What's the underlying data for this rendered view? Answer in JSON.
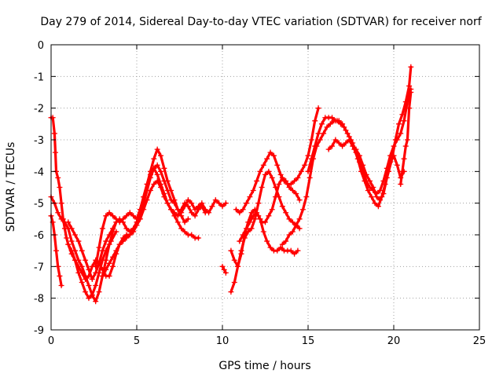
{
  "chart_data": {
    "type": "scatter",
    "title": "Day 279 of 2014, Sidereal Day-to-day VTEC variation (SDTVAR) for receiver norf",
    "xlabel": "GPS time / hours",
    "ylabel": "SDTVAR / TECUs",
    "xlim": [
      0,
      25
    ],
    "ylim": [
      -9,
      0
    ],
    "xticks": [
      0,
      5,
      10,
      15,
      20,
      25
    ],
    "xtick_labels": [
      "0",
      "5",
      "10",
      "15",
      "20",
      "25"
    ],
    "yticks": [
      0,
      -1,
      -2,
      -3,
      -4,
      -5,
      -6,
      -7,
      -8,
      -9
    ],
    "ytick_labels": [
      "0",
      "-1",
      "-2",
      "-3",
      "-4",
      "-5",
      "-6",
      "-7",
      "-8",
      "-9"
    ],
    "grid": true,
    "marker": "+",
    "series_color": "#ff0000",
    "series": [
      {
        "name": "trace-1",
        "x": [
          0.0,
          0.1,
          0.2,
          0.25,
          0.3,
          0.4,
          0.5,
          0.6,
          0.7,
          0.8,
          0.9,
          1.0,
          1.2,
          1.4,
          1.6,
          1.8,
          2.0,
          2.2,
          2.4,
          2.6,
          2.8,
          3.0,
          3.2,
          3.5,
          3.8
        ],
        "y": [
          -2.3,
          -2.3,
          -2.8,
          -3.4,
          -4.0,
          -4.2,
          -4.5,
          -5.0,
          -5.5,
          -5.8,
          -6.1,
          -6.3,
          -6.5,
          -6.8,
          -7.2,
          -7.5,
          -7.8,
          -8.0,
          -7.9,
          -7.6,
          -7.2,
          -6.8,
          -6.5,
          -6.2,
          -5.9
        ]
      },
      {
        "name": "trace-2",
        "x": [
          0.0,
          0.2,
          0.4,
          0.6,
          0.8,
          1.0,
          1.2,
          1.4,
          1.6,
          1.8,
          2.0,
          2.2,
          2.4,
          2.6,
          2.8,
          3.0,
          3.2,
          3.4,
          3.6,
          3.8
        ],
        "y": [
          -4.8,
          -5.0,
          -5.3,
          -5.5,
          -5.6,
          -5.8,
          -6.2,
          -6.5,
          -6.8,
          -7.0,
          -7.3,
          -7.6,
          -7.9,
          -8.1,
          -7.8,
          -7.3,
          -6.8,
          -6.3,
          -5.9,
          -5.6
        ]
      },
      {
        "name": "trace-3",
        "x": [
          0.0,
          0.1,
          0.2,
          0.3,
          0.4,
          0.5,
          0.6
        ],
        "y": [
          -5.4,
          -5.6,
          -6.0,
          -6.5,
          -7.0,
          -7.3,
          -7.6
        ]
      },
      {
        "name": "trace-4",
        "x": [
          1.0,
          1.2,
          1.4,
          1.6,
          1.8,
          2.0,
          2.2,
          2.4,
          2.6,
          2.8,
          3.0,
          3.2,
          3.4,
          3.6,
          3.8,
          4.0,
          4.2,
          4.4,
          4.6,
          4.8,
          5.0,
          5.2,
          5.4,
          5.6,
          5.8,
          6.0,
          6.2,
          6.4,
          6.6,
          6.8,
          7.0,
          7.2,
          7.4,
          7.6,
          7.8,
          8.0,
          8.2,
          8.4,
          8.6,
          8.8,
          9.0,
          9.2,
          9.4,
          9.6,
          9.8,
          10.0,
          10.2
        ],
        "y": [
          -5.6,
          -5.8,
          -6.0,
          -6.2,
          -6.5,
          -6.8,
          -7.1,
          -7.4,
          -7.2,
          -6.9,
          -6.5,
          -6.2,
          -6.0,
          -5.8,
          -5.6,
          -5.5,
          -5.6,
          -5.8,
          -5.9,
          -5.8,
          -5.6,
          -5.3,
          -5.0,
          -4.6,
          -4.2,
          -3.9,
          -3.8,
          -4.0,
          -4.3,
          -4.6,
          -4.9,
          -5.0,
          -5.2,
          -5.3,
          -5.1,
          -4.9,
          -5.0,
          -5.2,
          -5.1,
          -5.0,
          -5.2,
          -5.3,
          -5.1,
          -4.9,
          -5.0,
          -5.1,
          -5.0
        ]
      },
      {
        "name": "trace-5",
        "x": [
          1.0,
          1.2,
          1.4,
          1.6,
          1.8,
          2.0,
          2.2,
          2.4,
          2.6,
          2.8,
          3.0,
          3.2,
          3.4,
          3.6,
          3.8,
          4.0,
          4.2,
          4.4,
          4.6,
          4.8,
          5.0,
          5.2,
          5.4,
          5.6,
          5.8,
          6.0,
          6.2,
          6.4,
          6.6,
          6.8,
          7.0,
          7.2,
          7.4,
          7.6,
          7.8,
          8.0,
          8.2,
          8.4,
          8.6
        ],
        "y": [
          -6.3,
          -6.6,
          -6.8,
          -7.0,
          -7.2,
          -7.4,
          -7.3,
          -7.0,
          -6.8,
          -6.9,
          -7.1,
          -7.3,
          -7.3,
          -7.0,
          -6.6,
          -6.3,
          -6.1,
          -6.0,
          -6.0,
          -5.9,
          -5.7,
          -5.5,
          -5.2,
          -4.9,
          -4.6,
          -4.4,
          -4.3,
          -4.5,
          -4.8,
          -5.0,
          -5.2,
          -5.4,
          -5.6,
          -5.8,
          -5.9,
          -6.0,
          -6.0,
          -6.1,
          -6.1
        ]
      },
      {
        "name": "trace-6",
        "x": [
          2.6,
          2.8,
          3.0,
          3.2,
          3.4,
          3.6,
          3.8,
          4.0,
          4.2,
          4.4,
          4.6,
          4.8,
          5.0,
          5.2,
          5.4,
          5.6,
          5.8,
          6.0,
          6.2,
          6.4,
          6.6,
          6.8,
          7.0,
          7.2,
          7.4,
          7.6,
          7.8,
          8.0
        ],
        "y": [
          -7.0,
          -6.4,
          -5.8,
          -5.4,
          -5.3,
          -5.4,
          -5.5,
          -5.6,
          -5.5,
          -5.4,
          -5.3,
          -5.4,
          -5.5,
          -5.2,
          -4.8,
          -4.4,
          -4.0,
          -3.6,
          -3.3,
          -3.5,
          -3.9,
          -4.3,
          -4.6,
          -4.9,
          -5.2,
          -5.4,
          -5.6,
          -5.5
        ]
      },
      {
        "name": "trace-7",
        "x": [
          3.0,
          3.2,
          3.4,
          3.6,
          3.8,
          4.0,
          4.2,
          4.4,
          4.6,
          4.8,
          5.0,
          5.2,
          5.4,
          5.6,
          5.8,
          6.0,
          6.2,
          6.4,
          6.6,
          6.8,
          7.0,
          7.2,
          7.4,
          7.6,
          7.8,
          8.0,
          8.2,
          8.4,
          8.6,
          8.8,
          9.0
        ],
        "y": [
          -7.3,
          -7.1,
          -6.9,
          -6.7,
          -6.5,
          -6.3,
          -6.2,
          -6.1,
          -6.0,
          -5.9,
          -5.6,
          -5.2,
          -4.8,
          -4.4,
          -4.1,
          -3.9,
          -4.1,
          -4.4,
          -4.7,
          -5.0,
          -5.2,
          -5.3,
          -5.4,
          -5.2,
          -5.0,
          -5.1,
          -5.3,
          -5.4,
          -5.2,
          -5.1,
          -5.3
        ]
      },
      {
        "name": "trace-8",
        "x": [
          10.0,
          10.1,
          10.2
        ],
        "y": [
          -7.0,
          -7.1,
          -7.2
        ]
      },
      {
        "name": "trace-9",
        "x": [
          10.5,
          10.7,
          10.9,
          11.1,
          11.3,
          11.5,
          11.7,
          11.9,
          12.1,
          12.3,
          12.5,
          12.7,
          12.9,
          13.1,
          13.3,
          13.5,
          13.7,
          13.9,
          14.1,
          14.3,
          14.5
        ],
        "y": [
          -7.8,
          -7.5,
          -7.0,
          -6.5,
          -6.1,
          -5.9,
          -5.8,
          -5.5,
          -5.0,
          -4.5,
          -4.1,
          -4.0,
          -4.2,
          -4.5,
          -4.8,
          -5.1,
          -5.3,
          -5.5,
          -5.6,
          -5.7,
          -5.8
        ]
      },
      {
        "name": "trace-10",
        "x": [
          10.5,
          10.7,
          10.9,
          11.1,
          11.3,
          11.5,
          11.7,
          11.9,
          12.1,
          12.3,
          12.5,
          12.7,
          12.9,
          13.1,
          13.3,
          13.5,
          13.7,
          13.9,
          14.1,
          14.3,
          14.5
        ],
        "y": [
          -6.5,
          -6.8,
          -7.0,
          -6.6,
          -6.0,
          -5.6,
          -5.3,
          -5.2,
          -5.4,
          -5.6,
          -5.6,
          -5.4,
          -5.2,
          -4.8,
          -4.4,
          -4.2,
          -4.3,
          -4.5,
          -4.6,
          -4.7,
          -4.9
        ]
      },
      {
        "name": "trace-11",
        "x": [
          10.8,
          11.0,
          11.2,
          11.4,
          11.6,
          11.8,
          12.0,
          12.2,
          12.4,
          12.6,
          12.8,
          13.0,
          13.2,
          13.4,
          13.6,
          13.8,
          14.0,
          14.2,
          14.4,
          14.6,
          14.8,
          15.0,
          15.2,
          15.4,
          15.6
        ],
        "y": [
          -5.2,
          -5.3,
          -5.2,
          -5.0,
          -4.8,
          -4.6,
          -4.3,
          -4.0,
          -3.8,
          -3.6,
          -3.4,
          -3.5,
          -3.8,
          -4.1,
          -4.3,
          -4.4,
          -4.4,
          -4.3,
          -4.2,
          -4.0,
          -3.8,
          -3.5,
          -3.0,
          -2.4,
          -2.0
        ]
      },
      {
        "name": "trace-12",
        "x": [
          11.0,
          11.2,
          11.4,
          11.6,
          11.8,
          12.0,
          12.2,
          12.4,
          12.6,
          12.8,
          13.0,
          13.2,
          13.4,
          13.6,
          13.8,
          14.0,
          14.2,
          14.4
        ],
        "y": [
          -6.2,
          -6.0,
          -5.8,
          -5.6,
          -5.4,
          -5.3,
          -5.5,
          -5.9,
          -6.2,
          -6.4,
          -6.5,
          -6.5,
          -6.4,
          -6.5,
          -6.5,
          -6.5,
          -6.6,
          -6.5
        ]
      },
      {
        "name": "trace-13",
        "x": [
          13.5,
          13.7,
          13.9,
          14.1,
          14.3,
          14.5,
          14.7,
          14.9,
          15.1,
          15.3,
          15.5,
          15.7,
          15.9,
          16.1,
          16.3,
          16.5,
          16.7,
          16.9,
          17.1,
          17.3,
          17.5,
          17.7,
          17.9,
          18.1,
          18.3,
          18.5,
          18.7,
          18.9,
          19.1,
          19.3,
          19.5,
          19.7,
          19.9,
          20.1,
          20.3,
          20.5,
          20.7,
          20.9,
          21.0
        ],
        "y": [
          -6.3,
          -6.2,
          -6.0,
          -5.9,
          -5.7,
          -5.5,
          -5.2,
          -4.8,
          -4.2,
          -3.6,
          -3.2,
          -3.0,
          -2.8,
          -2.6,
          -2.5,
          -2.4,
          -2.4,
          -2.5,
          -2.6,
          -2.8,
          -3.0,
          -3.3,
          -3.6,
          -4.0,
          -4.3,
          -4.6,
          -4.8,
          -5.0,
          -5.1,
          -4.8,
          -4.4,
          -4.0,
          -3.6,
          -3.0,
          -2.5,
          -2.2,
          -1.8,
          -1.3,
          -0.7
        ]
      },
      {
        "name": "trace-14",
        "x": [
          15.0,
          15.2,
          15.4,
          15.6,
          15.8,
          16.0,
          16.2,
          16.4,
          16.6,
          16.8,
          17.0,
          17.2,
          17.4,
          17.6,
          17.8,
          18.0,
          18.2,
          18.4,
          18.6,
          18.8,
          19.0,
          19.2,
          19.4,
          19.6,
          19.8,
          20.0,
          20.2,
          20.4,
          20.6,
          20.8,
          21.0
        ],
        "y": [
          -4.0,
          -3.6,
          -3.2,
          -2.8,
          -2.5,
          -2.3,
          -2.3,
          -2.3,
          -2.4,
          -2.4,
          -2.5,
          -2.7,
          -2.9,
          -3.1,
          -3.4,
          -3.7,
          -4.0,
          -4.3,
          -4.5,
          -4.6,
          -4.7,
          -4.6,
          -4.3,
          -3.9,
          -3.5,
          -3.2,
          -3.0,
          -2.8,
          -2.4,
          -1.8,
          -1.4
        ]
      },
      {
        "name": "trace-15",
        "x": [
          16.2,
          16.4,
          16.6,
          16.8,
          17.0,
          17.2,
          17.4,
          17.6,
          17.8,
          18.0,
          18.2,
          18.4,
          18.6,
          18.8,
          19.0,
          19.2,
          19.4,
          19.6,
          19.8,
          20.0,
          20.2,
          20.4,
          20.6
        ],
        "y": [
          -3.3,
          -3.2,
          -3.0,
          -3.1,
          -3.2,
          -3.1,
          -3.0,
          -3.2,
          -3.3,
          -3.5,
          -3.8,
          -4.1,
          -4.3,
          -4.5,
          -4.8,
          -4.9,
          -4.7,
          -4.2,
          -3.7,
          -3.5,
          -3.8,
          -4.2,
          -4.0
        ]
      },
      {
        "name": "trace-16",
        "x": [
          20.4,
          20.5,
          20.6,
          20.7,
          20.8,
          20.9,
          21.0
        ],
        "y": [
          -4.4,
          -4.0,
          -3.6,
          -3.2,
          -3.0,
          -2.0,
          -1.5
        ]
      }
    ]
  }
}
